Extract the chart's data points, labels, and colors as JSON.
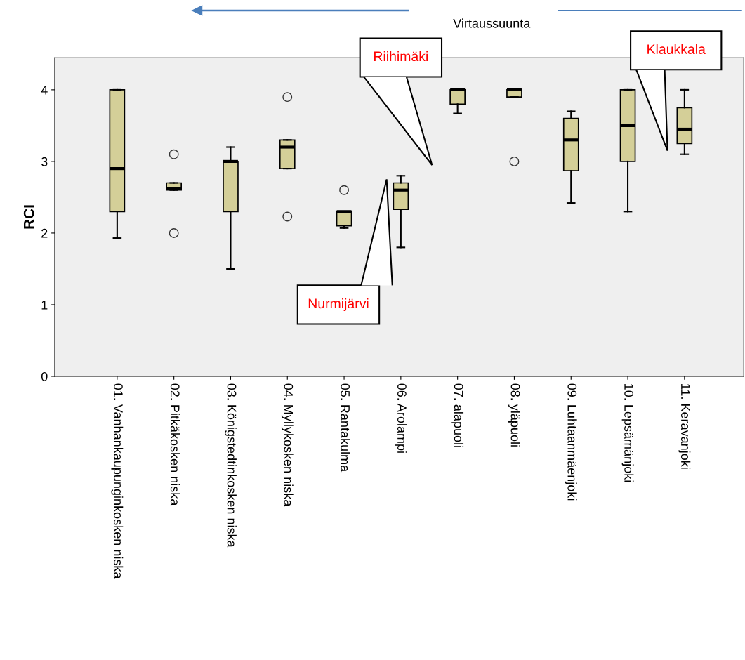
{
  "chart_data": {
    "type": "box",
    "ylabel": "RCI",
    "categories": [
      "01. Vanhankaupunginkosken niska",
      "02. Pitkäkosken niska",
      "03. Königstedtinkosken niska",
      "04. Myllykosken niska",
      "05. Rantakulma",
      "06. Arolampi",
      "07. alapuoli",
      "08. yläpuoli",
      "09. Luhtaanmäenjoki",
      "10. Lepsämänjoki",
      "11. Keravanjoki"
    ],
    "boxes": [
      {
        "low": 1.93,
        "q1": 2.3,
        "median": 2.9,
        "q3": 4.0,
        "high": 4.0
      },
      {
        "low": 2.6,
        "q1": 2.6,
        "median": 2.62,
        "q3": 2.7,
        "high": 2.7,
        "outliers": [
          3.1,
          2.0
        ]
      },
      {
        "low": 1.5,
        "q1": 2.3,
        "median": 3.0,
        "q3": 3.0,
        "high": 3.2
      },
      {
        "low": 2.9,
        "q1": 2.9,
        "median": 3.2,
        "q3": 3.3,
        "high": 3.3,
        "outliers": [
          3.9,
          2.23
        ]
      },
      {
        "low": 2.07,
        "q1": 2.1,
        "median": 2.3,
        "q3": 2.3,
        "high": 2.3,
        "outliers": [
          2.6
        ]
      },
      {
        "low": 1.8,
        "q1": 2.33,
        "median": 2.6,
        "q3": 2.7,
        "high": 2.8
      },
      {
        "low": 3.67,
        "q1": 3.8,
        "median": 4.0,
        "q3": 4.0,
        "high": 4.0
      },
      {
        "low": 3.9,
        "q1": 3.9,
        "median": 4.0,
        "q3": 4.0,
        "high": 4.0,
        "outliers": [
          3.0
        ]
      },
      {
        "low": 2.42,
        "q1": 2.87,
        "median": 3.3,
        "q3": 3.6,
        "high": 3.7
      },
      {
        "low": 2.3,
        "q1": 3.0,
        "median": 3.5,
        "q3": 4.0,
        "high": 4.0
      },
      {
        "low": 3.1,
        "q1": 3.25,
        "median": 3.45,
        "q3": 3.75,
        "high": 4.0
      }
    ],
    "color": "#d4cf98",
    "ylim": [
      0,
      4.45
    ],
    "yticks": [
      0,
      1,
      2,
      3,
      4
    ],
    "grid": false,
    "annotations": [
      "Virtaussuunta",
      "Riihimäki",
      "Nurmijärvi",
      "Klaukkala"
    ]
  }
}
